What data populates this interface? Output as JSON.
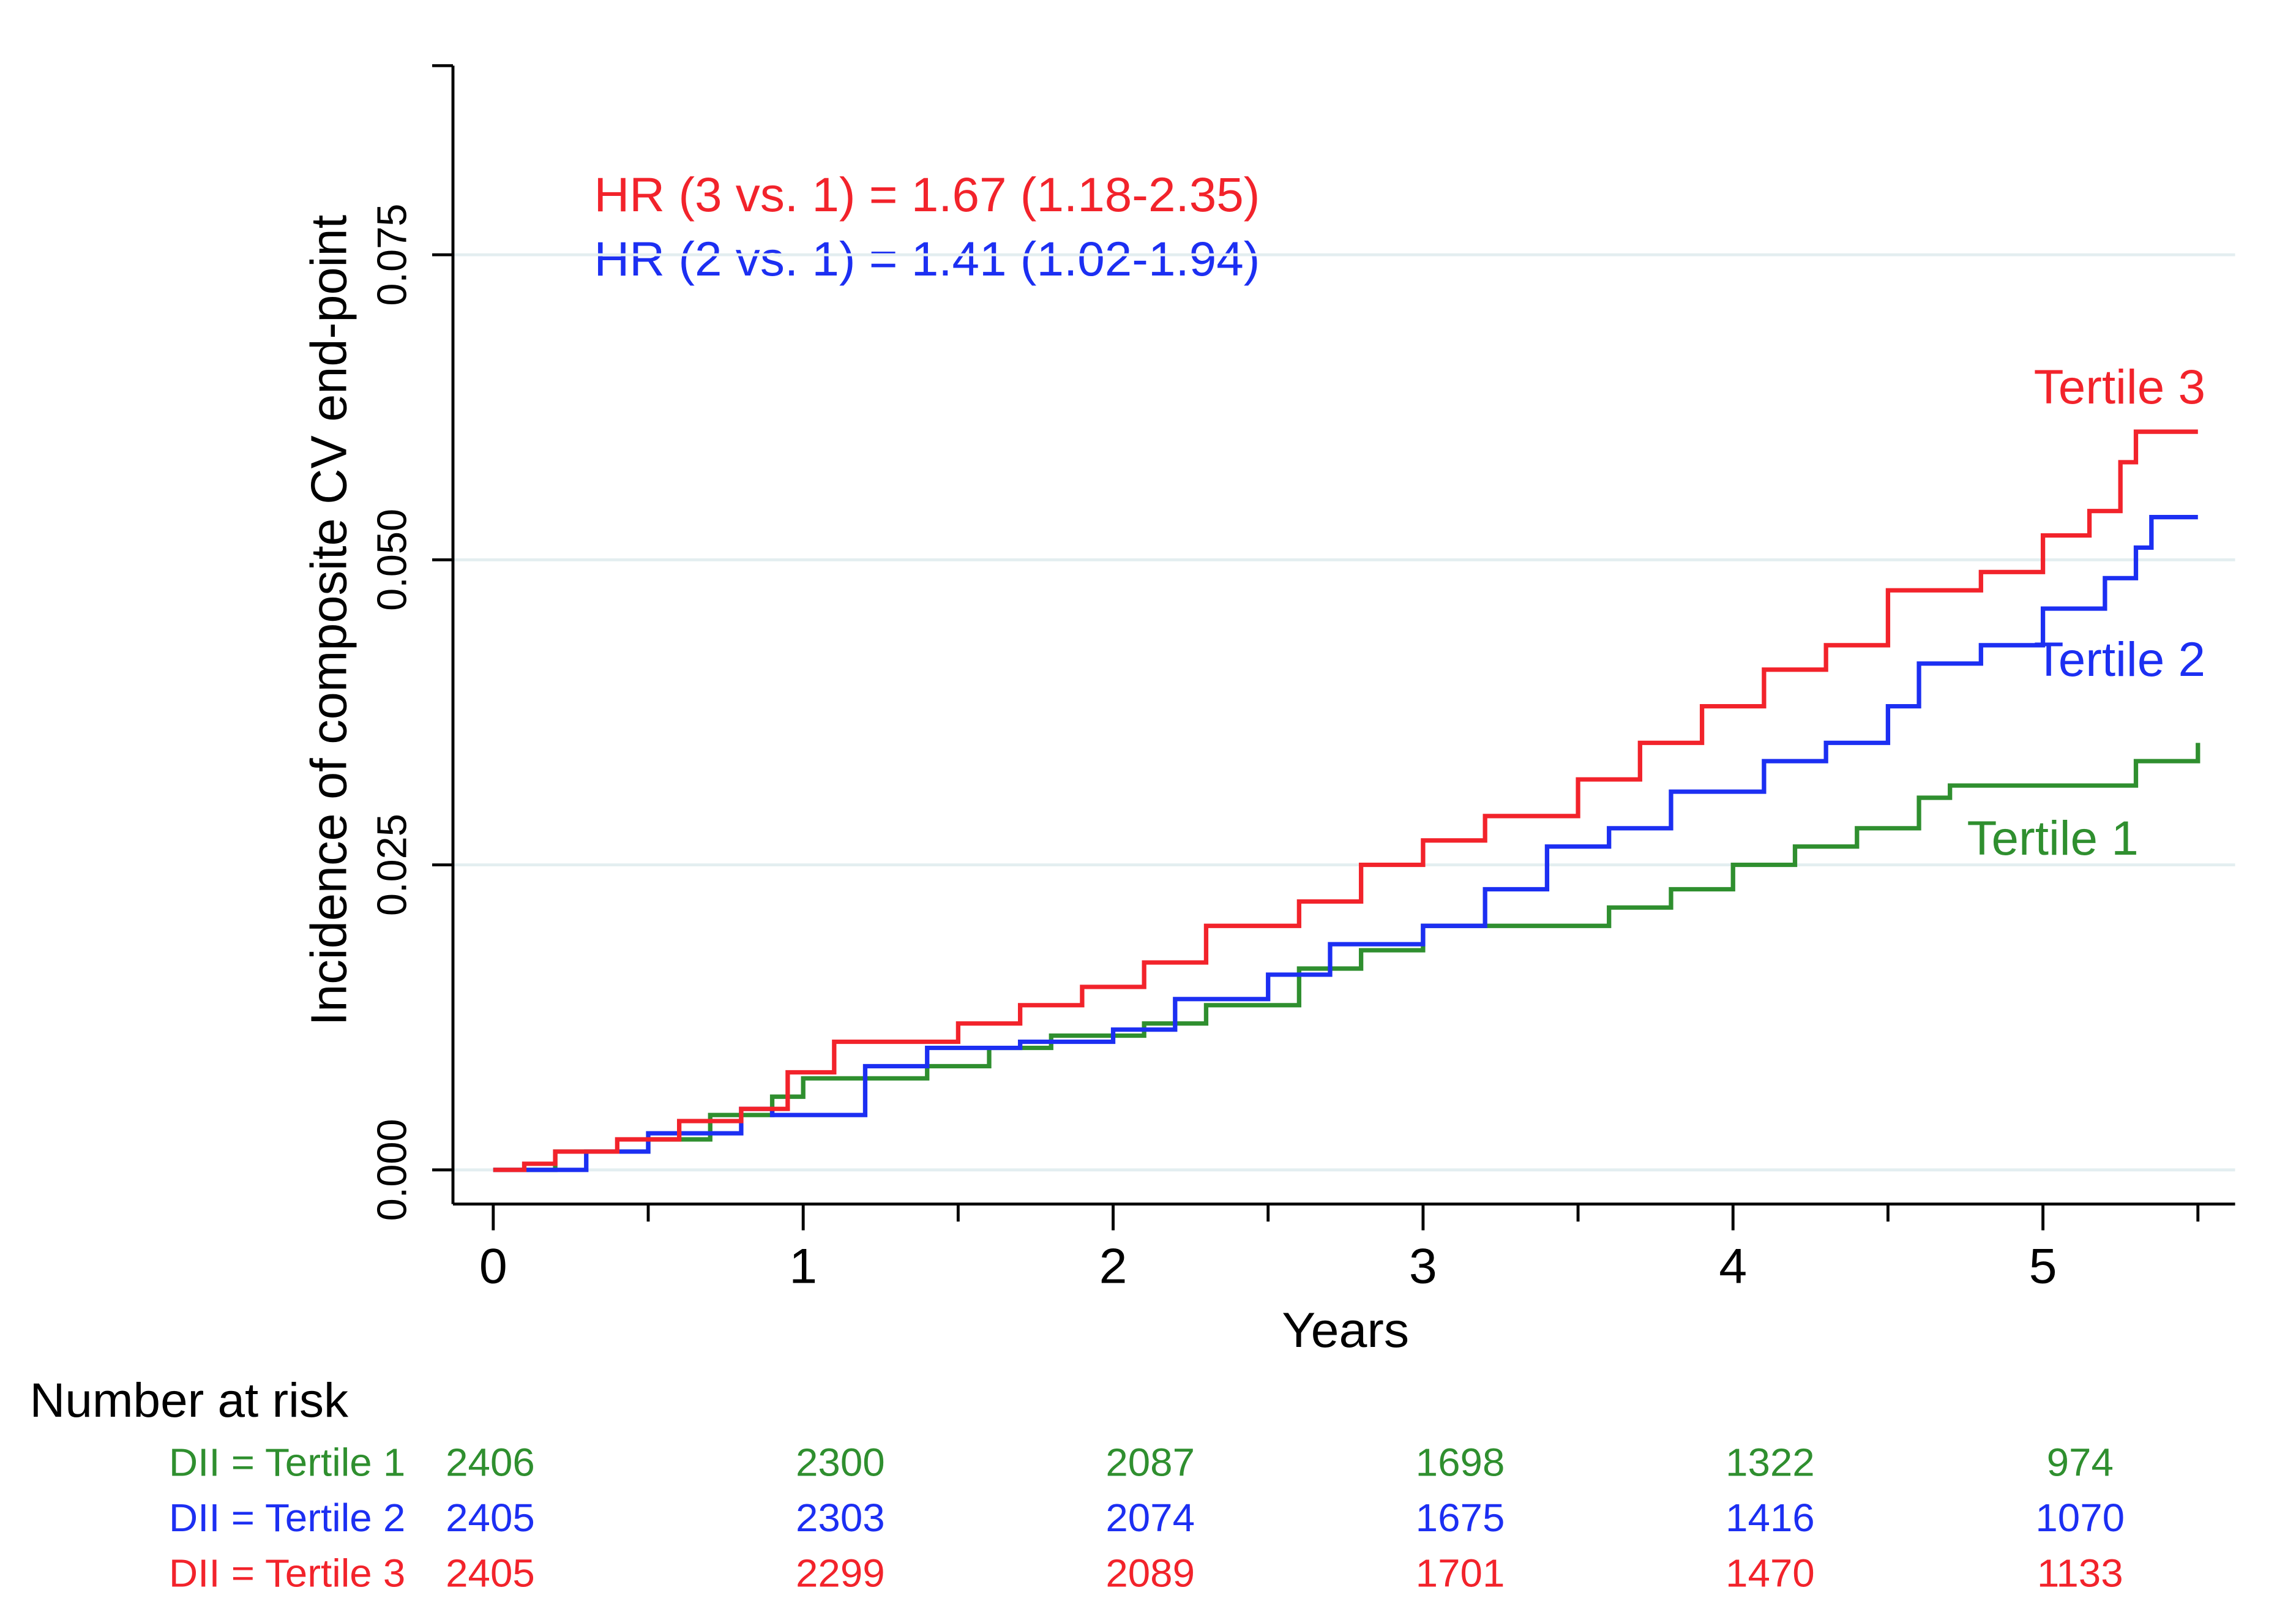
{
  "chart_data": {
    "type": "step",
    "y_label": "Incidence of composite CV end-point",
    "x_label": "Years",
    "xlim": [
      -0.13,
      5.62
    ],
    "ylim": [
      -0.0028,
      0.0905
    ],
    "xticks": [
      0,
      1,
      2,
      3,
      4,
      5
    ],
    "xminor_ticks": [
      0.5,
      1.5,
      2.5,
      3.5,
      4.5,
      5.5
    ],
    "yticks": [
      {
        "value": 0,
        "label": "0.000"
      },
      {
        "value": 0.025,
        "label": "0.025"
      },
      {
        "value": 0.05,
        "label": "0.050"
      },
      {
        "value": 0.075,
        "label": "0.075"
      }
    ],
    "grid": true,
    "annotations": [
      {
        "text": "HR (3 vs. 1) = 1.67 (1.18-2.35)",
        "color": "#f2232b"
      },
      {
        "text": "HR (2 vs. 1) = 1.41 (1.02-1.94)",
        "color": "#1c2ff2"
      }
    ],
    "series": [
      {
        "name": "Tertile 1",
        "color": "#2f8f2f",
        "x": [
          0,
          0.2,
          0.5,
          0.7,
          0.9,
          1.0,
          1.2,
          1.4,
          1.6,
          1.8,
          2.1,
          2.3,
          2.6,
          2.8,
          3.0,
          3.4,
          3.6,
          3.8,
          4.0,
          4.2,
          4.4,
          4.6,
          4.7,
          5.2,
          5.3,
          5.5
        ],
        "values": [
          0,
          0.0015,
          0.0025,
          0.0045,
          0.006,
          0.0075,
          0.0075,
          0.0085,
          0.01,
          0.011,
          0.012,
          0.0135,
          0.0165,
          0.018,
          0.02,
          0.02,
          0.0215,
          0.023,
          0.025,
          0.0265,
          0.028,
          0.0305,
          0.0315,
          0.0315,
          0.0335,
          0.035
        ]
      },
      {
        "name": "Tertile 2",
        "color": "#1c2ff2",
        "x": [
          0,
          0.3,
          0.5,
          0.8,
          0.9,
          1.05,
          1.2,
          1.4,
          1.7,
          2.0,
          2.2,
          2.5,
          2.7,
          3.0,
          3.2,
          3.4,
          3.6,
          3.8,
          4.1,
          4.3,
          4.5,
          4.6,
          4.8,
          5.0,
          5.2,
          5.3,
          5.35,
          5.5
        ],
        "values": [
          0,
          0.0015,
          0.003,
          0.005,
          0.0045,
          0.0045,
          0.0085,
          0.01,
          0.0105,
          0.0115,
          0.014,
          0.016,
          0.0185,
          0.02,
          0.023,
          0.0265,
          0.028,
          0.031,
          0.0335,
          0.035,
          0.038,
          0.0415,
          0.043,
          0.046,
          0.0485,
          0.051,
          0.0535,
          0.0535
        ]
      },
      {
        "name": "Tertile 3",
        "color": "#f2232b",
        "x": [
          0,
          0.1,
          0.2,
          0.4,
          0.6,
          0.8,
          0.95,
          1.1,
          1.5,
          1.7,
          1.9,
          2.1,
          2.3,
          2.6,
          2.8,
          3.0,
          3.2,
          3.5,
          3.7,
          3.9,
          4.1,
          4.3,
          4.5,
          4.8,
          5.0,
          5.15,
          5.25,
          5.3,
          5.5
        ],
        "values": [
          0,
          0.0005,
          0.0015,
          0.0025,
          0.004,
          0.005,
          0.008,
          0.0105,
          0.012,
          0.0135,
          0.015,
          0.017,
          0.02,
          0.022,
          0.025,
          0.027,
          0.029,
          0.032,
          0.035,
          0.038,
          0.041,
          0.043,
          0.0475,
          0.049,
          0.052,
          0.054,
          0.058,
          0.0605,
          0.0605
        ]
      }
    ],
    "risk_table": {
      "title": "Number at risk",
      "rows": [
        {
          "label": "DII = Tertile 1",
          "color": "#2f8f2f",
          "counts": [
            2406,
            2300,
            2087,
            1698,
            1322,
            974
          ]
        },
        {
          "label": "DII = Tertile 2",
          "color": "#1c2ff2",
          "counts": [
            2405,
            2303,
            2074,
            1675,
            1416,
            1070
          ]
        },
        {
          "label": "DII = Tertile 3",
          "color": "#f2232b",
          "counts": [
            2405,
            2299,
            2089,
            1701,
            1470,
            1133
          ]
        }
      ]
    }
  }
}
